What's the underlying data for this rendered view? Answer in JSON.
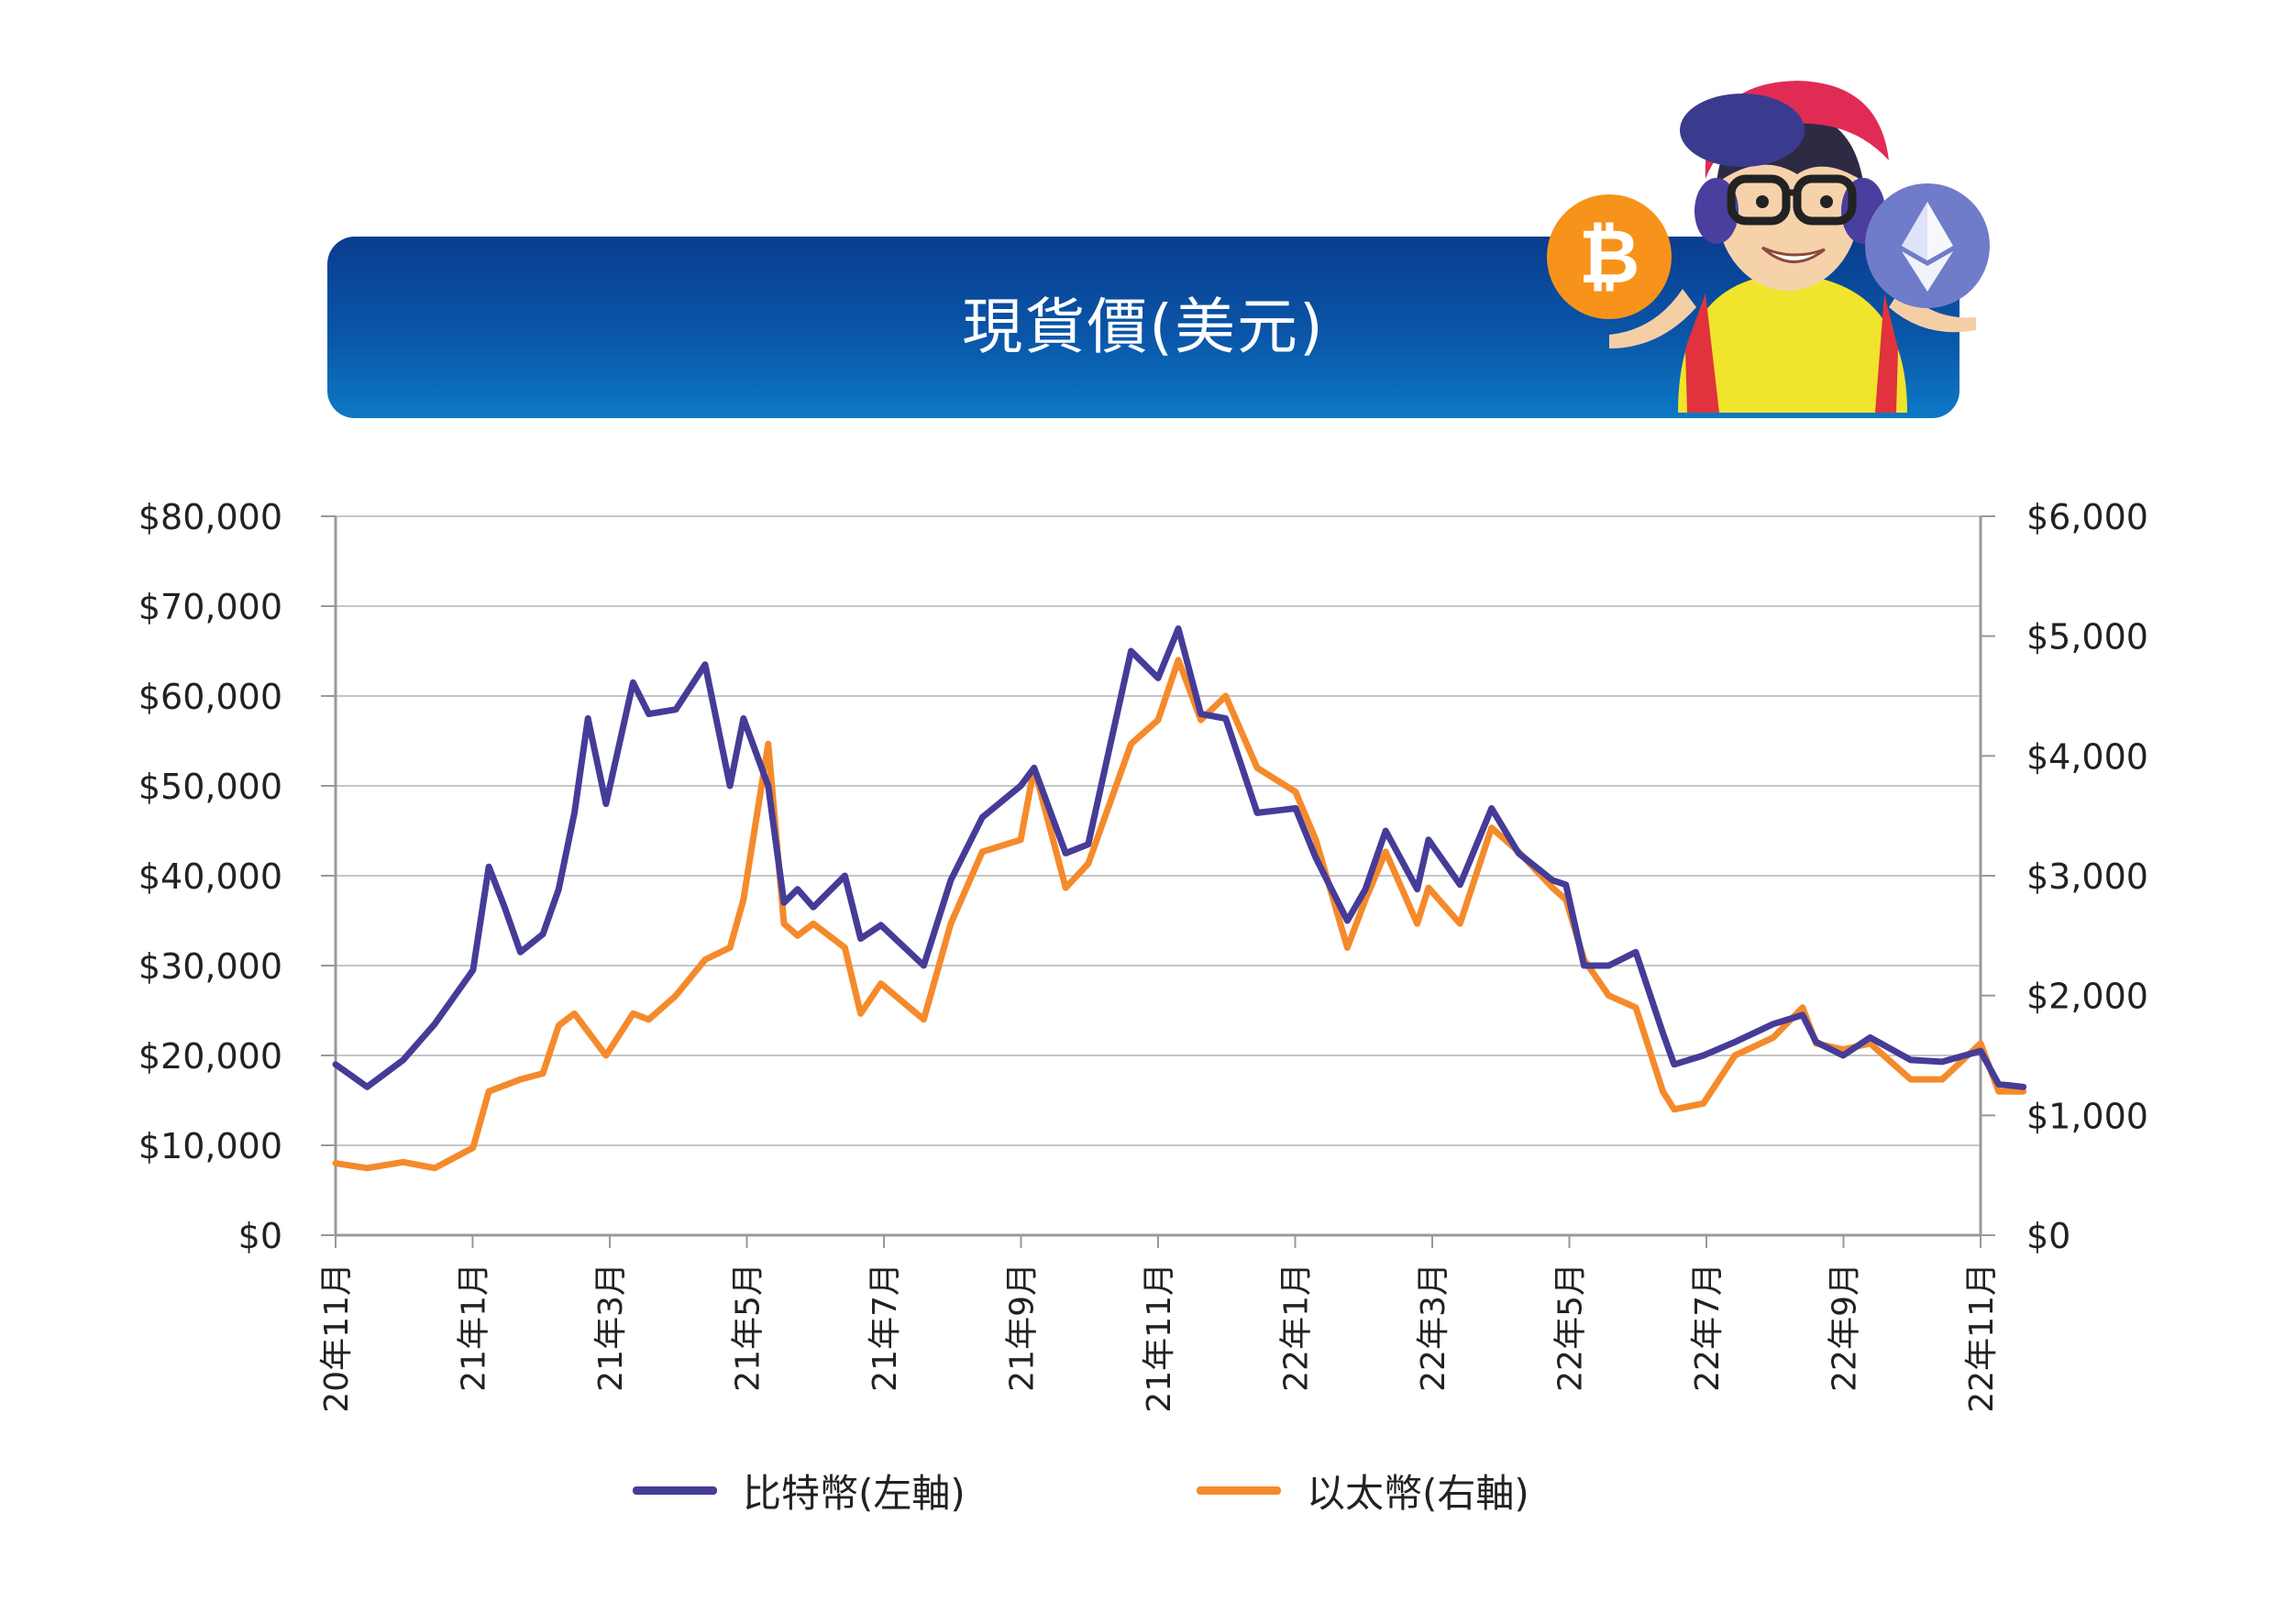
{
  "title": "現貨價(美元)",
  "colors": {
    "btc": "#453c98",
    "eth": "#f58a2b",
    "banner_top": "#0a3d8f",
    "banner_bottom": "#0c79c6",
    "grid": "#c6c6c6",
    "axis": "#999999"
  },
  "icons": {
    "btc_coin": "bitcoin-coin-icon",
    "eth_coin": "ethereum-coin-icon",
    "mascot": "cartoon-mascot"
  },
  "chart_data": {
    "type": "line",
    "x_tick_labels": [
      "20年11月",
      "21年1月",
      "21年3月",
      "21年5月",
      "21年7月",
      "21年9月",
      "21年11月",
      "22年1月",
      "22年3月",
      "22年5月",
      "22年7月",
      "22年9月",
      "22年11月"
    ],
    "xlim": [
      "2020-11",
      "2022-11"
    ],
    "y_left": {
      "ticks": [
        "$0",
        "$10,000",
        "$20,000",
        "$30,000",
        "$40,000",
        "$50,000",
        "$60,000",
        "$70,000",
        "$80,000"
      ],
      "ylim": [
        0,
        80000
      ]
    },
    "y_right": {
      "ticks": [
        "$0",
        "$1,000",
        "$2,000",
        "$3,000",
        "$4,000",
        "$5,000",
        "$6,000"
      ],
      "ylim": [
        0,
        6000
      ]
    },
    "grid": true,
    "legend_position": "bottom-center",
    "series": [
      {
        "name": "比特幣(左軸)",
        "axis": "left",
        "x": [
          "2020-11-01",
          "2020-11-15",
          "2020-12-01",
          "2020-12-15",
          "2021-01-01",
          "2021-01-08",
          "2021-01-15",
          "2021-01-22",
          "2021-02-01",
          "2021-02-08",
          "2021-02-15",
          "2021-02-21",
          "2021-03-01",
          "2021-03-13",
          "2021-03-20",
          "2021-04-01",
          "2021-04-14",
          "2021-04-25",
          "2021-05-01",
          "2021-05-12",
          "2021-05-19",
          "2021-05-25",
          "2021-06-01",
          "2021-06-15",
          "2021-06-22",
          "2021-07-01",
          "2021-07-20",
          "2021-08-01",
          "2021-08-15",
          "2021-09-01",
          "2021-09-07",
          "2021-09-21",
          "2021-10-01",
          "2021-10-20",
          "2021-11-01",
          "2021-11-10",
          "2021-11-20",
          "2021-12-01",
          "2021-12-15",
          "2022-01-01",
          "2022-01-10",
          "2022-01-24",
          "2022-02-01",
          "2022-02-10",
          "2022-02-24",
          "2022-03-01",
          "2022-03-15",
          "2022-03-29",
          "2022-04-10",
          "2022-04-25",
          "2022-05-01",
          "2022-05-09",
          "2022-05-20",
          "2022-06-01",
          "2022-06-13",
          "2022-06-18",
          "2022-07-01",
          "2022-07-15",
          "2022-08-01",
          "2022-08-14",
          "2022-08-20",
          "2022-09-01",
          "2022-09-13",
          "2022-10-01",
          "2022-10-15",
          "2022-11-01",
          "2022-11-09",
          "2022-11-20"
        ],
        "values": [
          19000,
          16500,
          19500,
          23500,
          29500,
          41000,
          36500,
          31500,
          33500,
          38500,
          47000,
          57500,
          48000,
          61500,
          58000,
          58500,
          63500,
          50000,
          57500,
          50000,
          37000,
          38500,
          36500,
          40000,
          33000,
          34500,
          30000,
          39500,
          46500,
          50000,
          52000,
          42500,
          43500,
          65000,
          62000,
          67500,
          58000,
          57500,
          47000,
          47500,
          42000,
          35000,
          38500,
          45000,
          38500,
          44000,
          39000,
          47500,
          42500,
          39500,
          39000,
          30000,
          30000,
          31500,
          22500,
          19000,
          20000,
          21500,
          23500,
          24500,
          21500,
          20000,
          22000,
          19500,
          19300,
          20500,
          16800,
          16500
        ]
      },
      {
        "name": "以太幣(右軸)",
        "axis": "right",
        "x": [
          "2020-11-01",
          "2020-11-15",
          "2020-12-01",
          "2020-12-15",
          "2021-01-01",
          "2021-01-08",
          "2021-01-15",
          "2021-01-22",
          "2021-02-01",
          "2021-02-08",
          "2021-02-15",
          "2021-02-21",
          "2021-03-01",
          "2021-03-13",
          "2021-03-20",
          "2021-04-01",
          "2021-04-14",
          "2021-04-25",
          "2021-05-01",
          "2021-05-12",
          "2021-05-19",
          "2021-05-25",
          "2021-06-01",
          "2021-06-15",
          "2021-06-22",
          "2021-07-01",
          "2021-07-20",
          "2021-08-01",
          "2021-08-15",
          "2021-09-01",
          "2021-09-07",
          "2021-09-21",
          "2021-10-01",
          "2021-10-20",
          "2021-11-01",
          "2021-11-10",
          "2021-11-20",
          "2021-12-01",
          "2021-12-15",
          "2022-01-01",
          "2022-01-10",
          "2022-01-24",
          "2022-02-01",
          "2022-02-10",
          "2022-02-24",
          "2022-03-01",
          "2022-03-15",
          "2022-03-29",
          "2022-04-10",
          "2022-04-25",
          "2022-05-01",
          "2022-05-09",
          "2022-05-20",
          "2022-06-01",
          "2022-06-13",
          "2022-06-18",
          "2022-07-01",
          "2022-07-15",
          "2022-08-01",
          "2022-08-14",
          "2022-08-20",
          "2022-09-01",
          "2022-09-13",
          "2022-10-01",
          "2022-10-15",
          "2022-11-01",
          "2022-11-09",
          "2022-11-20"
        ],
        "values": [
          600,
          560,
          610,
          560,
          730,
          1200,
          1250,
          1300,
          1350,
          1750,
          1850,
          1700,
          1500,
          1850,
          1800,
          2000,
          2300,
          2400,
          2800,
          4100,
          2600,
          2500,
          2600,
          2400,
          1850,
          2100,
          1800,
          2600,
          3200,
          3300,
          3900,
          2900,
          3100,
          4100,
          4300,
          4800,
          4300,
          4500,
          3900,
          3700,
          3300,
          2400,
          2800,
          3200,
          2600,
          2900,
          2600,
          3400,
          3200,
          2900,
          2800,
          2300,
          2000,
          1900,
          1200,
          1050,
          1100,
          1500,
          1650,
          1900,
          1600,
          1550,
          1600,
          1300,
          1300,
          1600,
          1200,
          1200
        ]
      }
    ]
  }
}
